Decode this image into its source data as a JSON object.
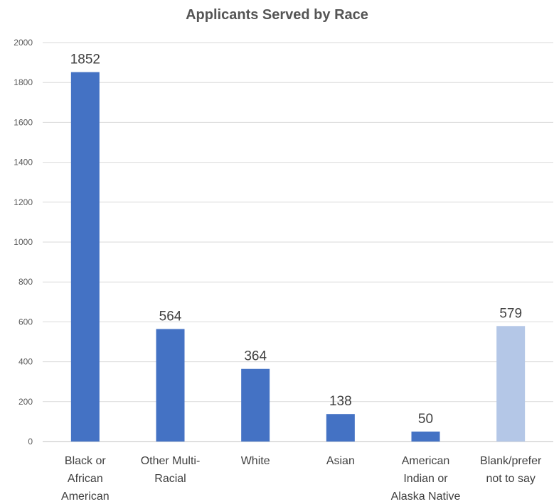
{
  "chart_data": {
    "type": "bar",
    "title": "Applicants Served by Race",
    "xlabel": "",
    "ylabel": "",
    "ylim": [
      0,
      2000
    ],
    "yticks": [
      0,
      200,
      400,
      600,
      800,
      1000,
      1200,
      1400,
      1600,
      1800,
      2000
    ],
    "categories": [
      [
        "Black or",
        "African",
        "American"
      ],
      [
        "Other Multi-",
        "Racial"
      ],
      [
        "White"
      ],
      [
        "Asian"
      ],
      [
        "American",
        "Indian or",
        "Alaska Native"
      ],
      [
        "Blank/prefer",
        "not to say"
      ]
    ],
    "values": [
      1852,
      564,
      364,
      138,
      50,
      579
    ],
    "data_labels": [
      "1852",
      "564",
      "364",
      "138",
      "50",
      "579"
    ],
    "bar_colors": [
      "#4472C4",
      "#4472C4",
      "#4472C4",
      "#4472C4",
      "#4472C4",
      "#B4C7E7"
    ],
    "grid": true,
    "legend": "none"
  }
}
